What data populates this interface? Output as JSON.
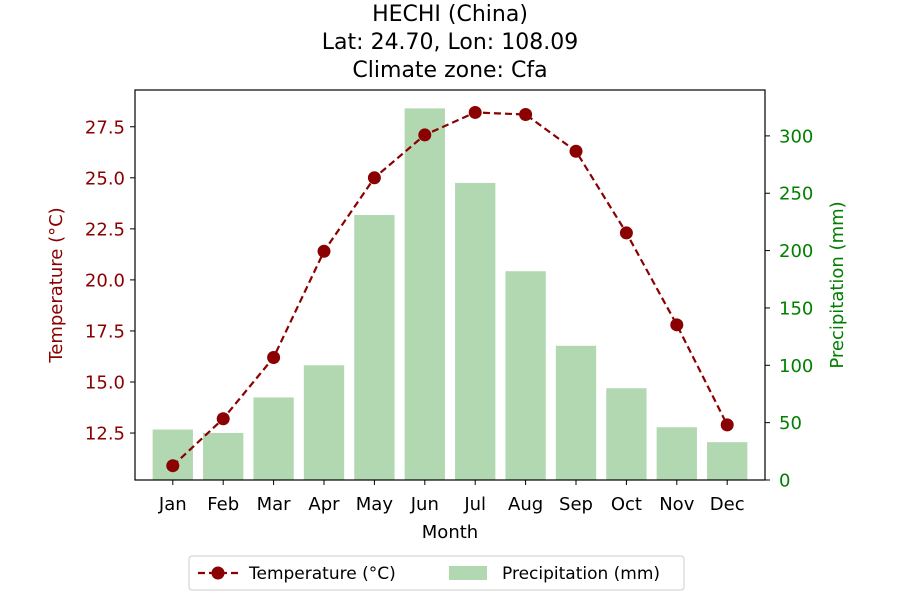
{
  "chart_data": {
    "type": "bar+line",
    "title_lines": [
      "HECHI (China)",
      "Lat: 24.70, Lon: 108.09",
      "Climate zone: Cfa"
    ],
    "xlabel": "Month",
    "ylabel_left": "Temperature (°C)",
    "ylabel_right": "Precipitation (mm)",
    "categories": [
      "Jan",
      "Feb",
      "Mar",
      "Apr",
      "May",
      "Jun",
      "Jul",
      "Aug",
      "Sep",
      "Oct",
      "Nov",
      "Dec"
    ],
    "ylim_left": [
      10.2,
      29.3
    ],
    "ylim_right": [
      0,
      340
    ],
    "yticks_left": [
      "12.5",
      "15.0",
      "17.5",
      "20.0",
      "22.5",
      "25.0",
      "27.5"
    ],
    "yticks_right": [
      "0",
      "50",
      "100",
      "150",
      "200",
      "250",
      "300"
    ],
    "legend_position": "bottom-center",
    "grid": false,
    "series": [
      {
        "name": "Temperature (°C)",
        "type": "line",
        "axis": "left",
        "color": "#8b0000",
        "values": [
          10.9,
          13.2,
          16.2,
          21.4,
          25.0,
          27.1,
          28.2,
          28.1,
          26.3,
          22.3,
          17.8,
          12.9
        ]
      },
      {
        "name": "Precipitation (mm)",
        "type": "bar",
        "axis": "right",
        "color": "#b2d8b2",
        "values": [
          44,
          41,
          72,
          100,
          231,
          324,
          259,
          182,
          117,
          80,
          46,
          33
        ]
      }
    ],
    "colors": {
      "left_axis": "#8b0000",
      "right_axis": "#008000",
      "axes": "#000000"
    }
  }
}
